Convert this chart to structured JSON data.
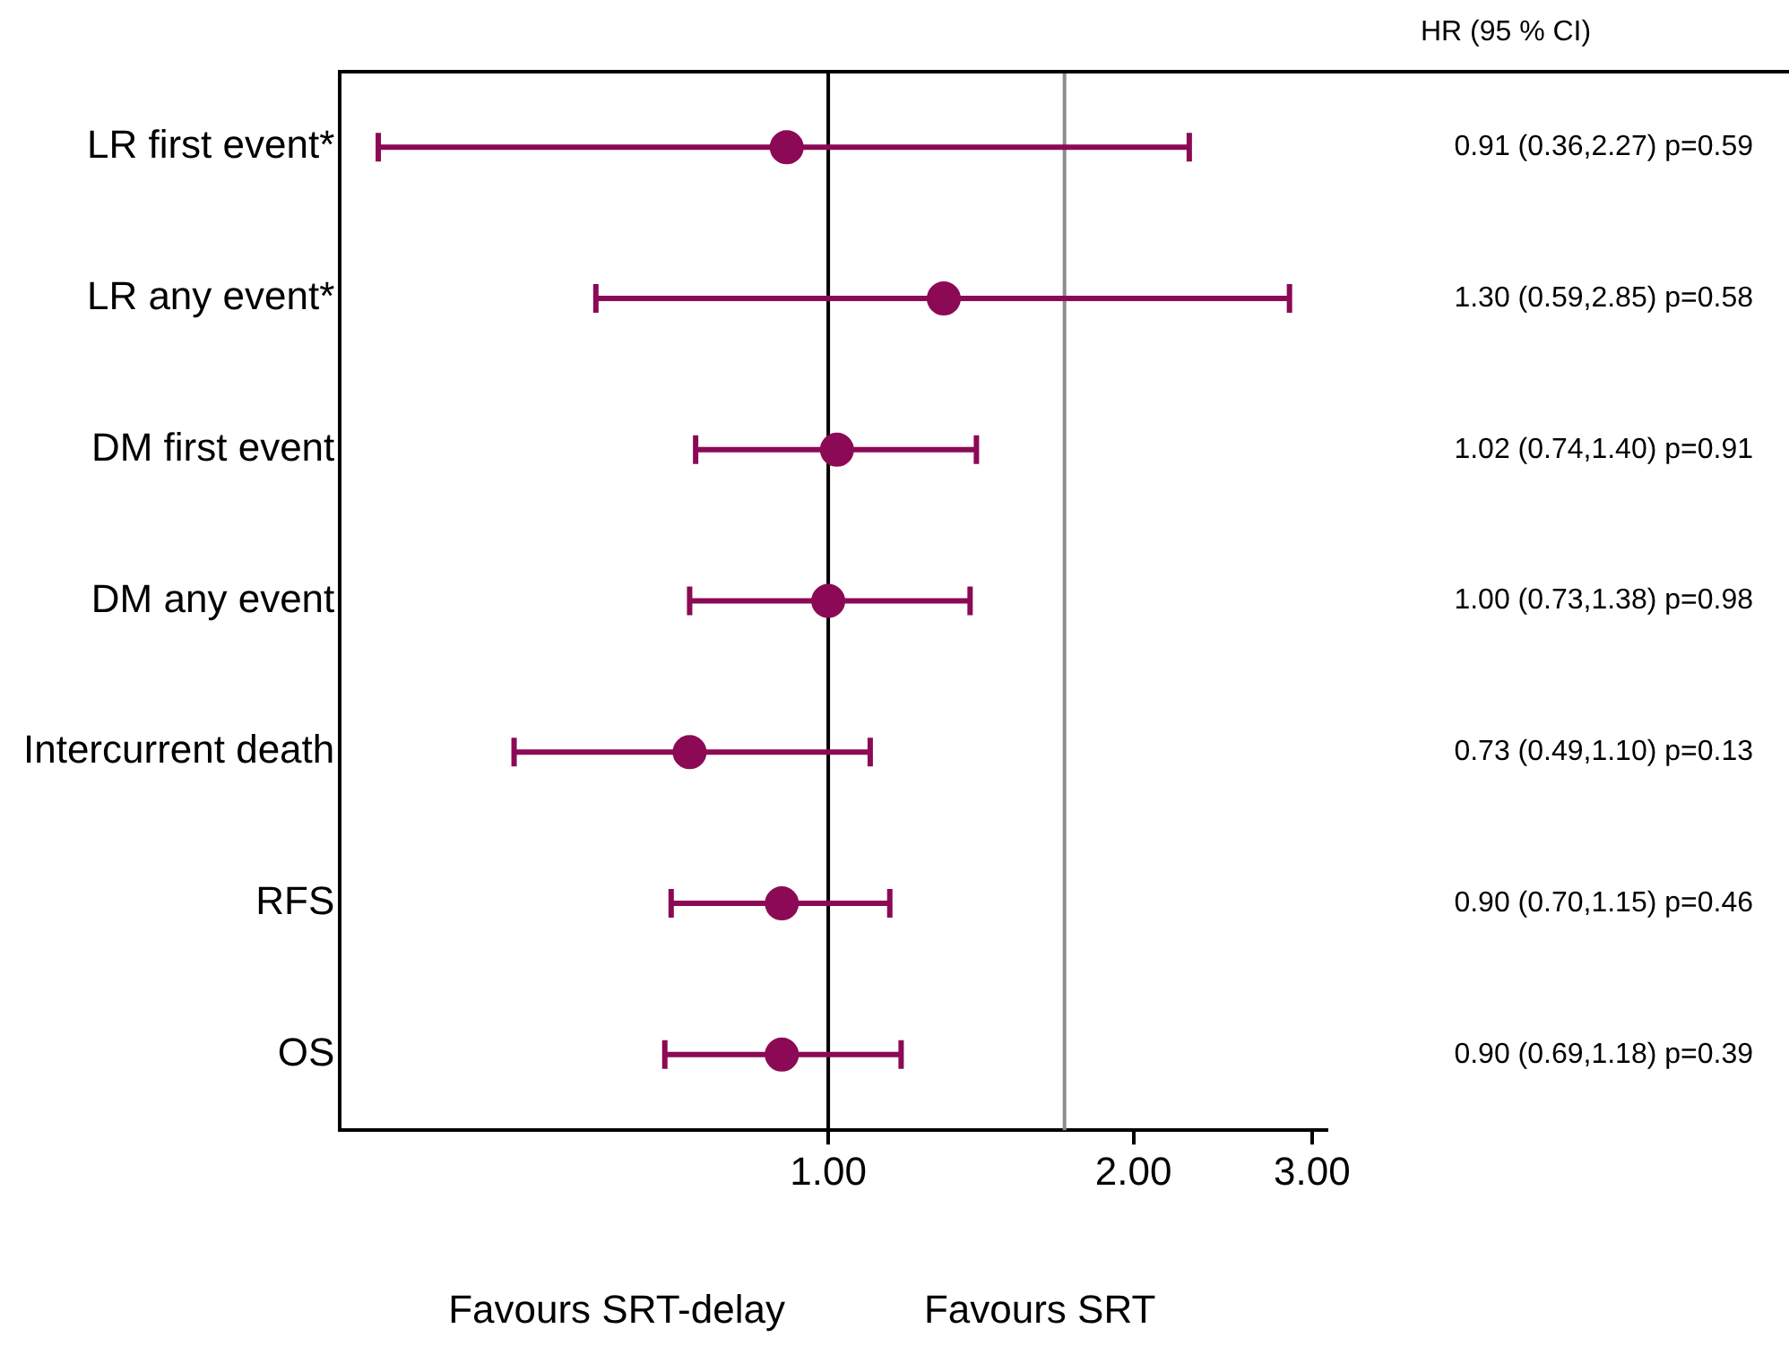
{
  "chart_data": {
    "type": "scatter",
    "orientation": "horizontal",
    "log": "x",
    "marker": "circle",
    "grid": false,
    "legend": false,
    "categories": [
      "LR first event*",
      "LR any event*",
      "DM first event",
      "DM any event",
      "Intercurrent death",
      "RFS",
      "OS"
    ],
    "series": [
      {
        "color": "#8c0a55",
        "values": [
          0.91,
          1.3,
          1.02,
          1.0,
          0.73,
          0.9,
          0.9
        ],
        "errors": [
          [
            0.36,
            2.27
          ],
          [
            0.59,
            2.85
          ],
          [
            0.74,
            1.4
          ],
          [
            0.73,
            1.38
          ],
          [
            0.49,
            1.1
          ],
          [
            0.7,
            1.15
          ],
          [
            0.69,
            1.18
          ]
        ],
        "value_labels": [
          "0.91 (0.36,2.27) p=0.59",
          "1.30 (0.59,2.85) p=0.58",
          "1.02 (0.74,1.40) p=0.91",
          "1.00 (0.73,1.38) p=0.98",
          "0.73 (0.49,1.10) p=0.13",
          "0.90 (0.70,1.15) p=0.46",
          "0.90 (0.69,1.18) p=0.39"
        ]
      }
    ],
    "xlim": [
      0.33,
      3.1
    ],
    "xticks": [
      {
        "value": 1,
        "label": "1.00"
      },
      {
        "value": 2,
        "label": "2.00"
      },
      {
        "value": 3,
        "label": "3.00"
      }
    ],
    "ref_lines": [
      {
        "axis": "x",
        "value": 1,
        "color": "#000000"
      },
      {
        "axis": "x",
        "value": 1.71,
        "color": "#8c8c8c"
      }
    ],
    "annotations": [
      "HR (95 % CI)",
      "Favours SRT-delay",
      "Favours SRT"
    ]
  }
}
